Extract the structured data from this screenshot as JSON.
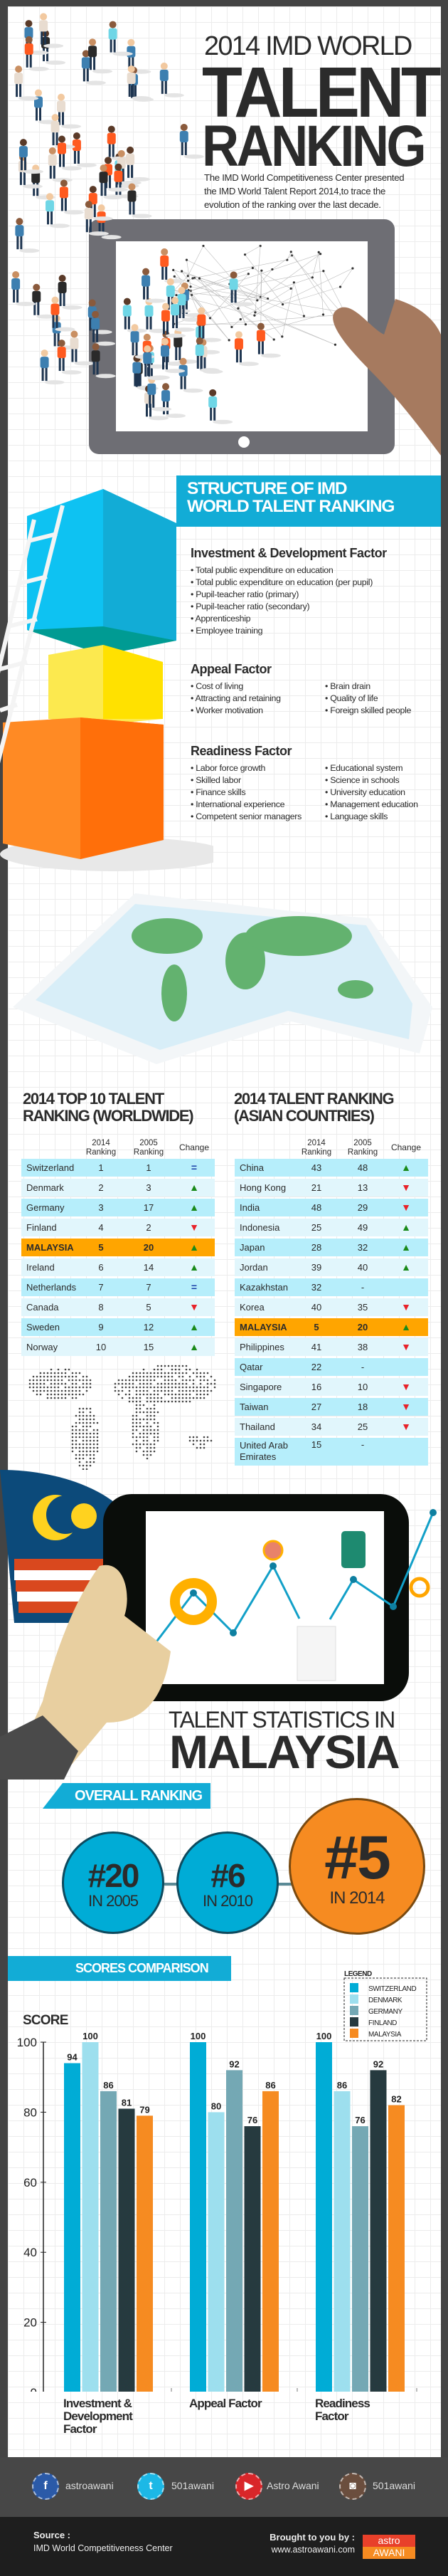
{
  "header": {
    "title_line1": "2014 IMD WORLD",
    "title_line2": "TALENT",
    "title_line3": "RANKING",
    "description_lines": [
      "The IMD World Competitiveness Center presented",
      "the IMD World Talent Report 2014,to trace the",
      "evolution of the ranking over the last decade."
    ]
  },
  "structure": {
    "title_line1": "STRUCTURE OF IMD",
    "title_line2": "WORLD TALENT RANKING",
    "factors": [
      {
        "name": "Investment & Development Factor",
        "col1": [
          "Total public expenditure on education",
          "Total public expenditure on education (per pupil)",
          "Pupil-teacher ratio (primary)",
          "Pupil-teacher ratio (secondary)",
          "Apprenticeship",
          "Employee training"
        ],
        "col2": []
      },
      {
        "name": "Appeal Factor",
        "col1": [
          "Cost of living",
          "Attracting and retaining",
          "Worker motivation"
        ],
        "col2": [
          "Brain drain",
          "Quality of life",
          "Foreign skilled people"
        ]
      },
      {
        "name": "Readiness Factor",
        "col1": [
          "Labor force growth",
          "Skilled labor",
          "Finance skills",
          "International experience",
          "Competent senior managers"
        ],
        "col2": [
          "Educational system",
          "Science in schools",
          "University education",
          "Management education",
          "Language skills"
        ]
      }
    ]
  },
  "table_headers": {
    "year_2014": "2014",
    "year_2005": "2005",
    "ranking": "Ranking",
    "change": "Change"
  },
  "worldwide": {
    "title_line1": "2014 TOP 10 TALENT",
    "title_line2": "RANKING (WORLDWIDE)",
    "rows": [
      {
        "country": "Switzerland",
        "r2014": "1",
        "r2005": "1",
        "change": "same"
      },
      {
        "country": "Denmark",
        "r2014": "2",
        "r2005": "3",
        "change": "up"
      },
      {
        "country": "Germany",
        "r2014": "3",
        "r2005": "17",
        "change": "up"
      },
      {
        "country": "Finland",
        "r2014": "4",
        "r2005": "2",
        "change": "down"
      },
      {
        "country": "MALAYSIA",
        "r2014": "5",
        "r2005": "20",
        "change": "up",
        "highlight": true
      },
      {
        "country": "Ireland",
        "r2014": "6",
        "r2005": "14",
        "change": "up"
      },
      {
        "country": "Netherlands",
        "r2014": "7",
        "r2005": "7",
        "change": "same"
      },
      {
        "country": "Canada",
        "r2014": "8",
        "r2005": "5",
        "change": "down"
      },
      {
        "country": "Sweden",
        "r2014": "9",
        "r2005": "12",
        "change": "up"
      },
      {
        "country": "Norway",
        "r2014": "10",
        "r2005": "15",
        "change": "up"
      }
    ]
  },
  "asian": {
    "title_line1": "2014 TALENT RANKING",
    "title_line2": "(ASIAN COUNTRIES)",
    "rows": [
      {
        "country": "China",
        "r2014": "43",
        "r2005": "48",
        "change": "up"
      },
      {
        "country": "Hong Kong",
        "r2014": "21",
        "r2005": "13",
        "change": "down"
      },
      {
        "country": "India",
        "r2014": "48",
        "r2005": "29",
        "change": "down"
      },
      {
        "country": "Indonesia",
        "r2014": "25",
        "r2005": "49",
        "change": "up"
      },
      {
        "country": "Japan",
        "r2014": "28",
        "r2005": "32",
        "change": "up"
      },
      {
        "country": "Jordan",
        "r2014": "39",
        "r2005": "40",
        "change": "up"
      },
      {
        "country": "Kazakhstan",
        "r2014": "32",
        "r2005": "-",
        "change": ""
      },
      {
        "country": "Korea",
        "r2014": "40",
        "r2005": "35",
        "change": "down"
      },
      {
        "country": "MALAYSIA",
        "r2014": "5",
        "r2005": "20",
        "change": "up",
        "highlight": true
      },
      {
        "country": "Philippines",
        "r2014": "41",
        "r2005": "38",
        "change": "down"
      },
      {
        "country": "Qatar",
        "r2014": "22",
        "r2005": "-",
        "change": ""
      },
      {
        "country": "Singapore",
        "r2014": "16",
        "r2005": "10",
        "change": "down"
      },
      {
        "country": "Taiwan",
        "r2014": "27",
        "r2005": "18",
        "change": "down"
      },
      {
        "country": "Thailand",
        "r2014": "34",
        "r2005": "25",
        "change": "down"
      },
      {
        "country": "United Arab Emirates",
        "r2014": "15",
        "r2005": "-",
        "change": ""
      }
    ]
  },
  "malaysia": {
    "title_line1": "TALENT STATISTICS IN",
    "title_line2": "MALAYSIA"
  },
  "overall_ranking": {
    "label": "OVERALL RANKING",
    "items": [
      {
        "rank": "#20",
        "year_label": "IN 2005"
      },
      {
        "rank": "#6",
        "year_label": "IN 2010"
      },
      {
        "rank": "#5",
        "year_label": "IN 2014"
      }
    ]
  },
  "scores": {
    "label": "SCORES COMPARISON"
  },
  "chart_data": {
    "type": "bar",
    "title": "",
    "xlabel": "",
    "ylabel": "SCORE",
    "ylim": [
      0,
      100
    ],
    "yticks": [
      "0",
      "20",
      "40",
      "60",
      "80",
      "100"
    ],
    "categories": [
      "Investment & Development Factor",
      "Appeal Factor",
      "Readiness Factor"
    ],
    "legend_title": "LEGEND",
    "legend_position": "top-right",
    "series": [
      {
        "name": "SWITZERLAND",
        "color": "#00acd6",
        "values": [
          94,
          100,
          100
        ]
      },
      {
        "name": "DENMARK",
        "color": "#9ddfee",
        "values": [
          100,
          80,
          86
        ]
      },
      {
        "name": "GERMANY",
        "color": "#74a8b4",
        "values": [
          86,
          92,
          76
        ]
      },
      {
        "name": "FINLAND",
        "color": "#263a3f",
        "values": [
          81,
          76,
          92
        ]
      },
      {
        "name": "MALAYSIA",
        "color": "#f68b21",
        "values": [
          79,
          86,
          82
        ]
      }
    ]
  },
  "footer": {
    "social": [
      {
        "icon": "facebook-icon",
        "glyph": "f",
        "color": "#2b5aa8",
        "handle": "astroawani"
      },
      {
        "icon": "twitter-icon",
        "glyph": "t",
        "color": "#1cb8e6",
        "handle": "501awani"
      },
      {
        "icon": "youtube-icon",
        "glyph": "▶",
        "color": "#d9262a",
        "handle": "Astro Awani"
      },
      {
        "icon": "instagram-icon",
        "glyph": "◙",
        "color": "#6b4e3e",
        "handle": "501awani"
      }
    ],
    "source_label": "Source :",
    "source": "IMD World Competitiveness Center",
    "brought_label": "Brought to you by :",
    "url": "www.astroawani.com",
    "logo": {
      "line1": "astro",
      "line2": "AWANI"
    }
  },
  "colors": {
    "accent": "#12acd6",
    "highlight": "#ffa500",
    "row_dark": "#b6eefb",
    "row_light": "#e1f6fc",
    "up": "#1a8a1a",
    "down": "#e8232a",
    "same": "#1a3fa8"
  }
}
